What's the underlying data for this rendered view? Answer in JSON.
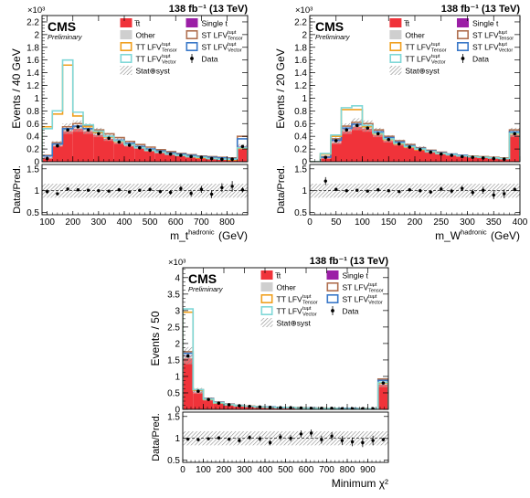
{
  "chart_data": [
    {
      "type": "bar",
      "panel": "top-left",
      "lumi_label": "138 fb⁻¹ (13 TeV)",
      "experiment": "CMS",
      "status": "Preliminary",
      "y_exponent": "×10³",
      "ylabel": "Events / 40 GeV",
      "ratio_ylabel": "Data/Pred.",
      "xlabel": "m_t^{hadronic} (GeV)",
      "xlim": [
        80,
        880
      ],
      "ylim": [
        0,
        2.3
      ],
      "yticks": [
        0,
        0.2,
        0.4,
        0.6,
        0.8,
        1,
        1.2,
        1.4,
        1.6,
        1.8,
        2,
        2.2
      ],
      "xticks": [
        100,
        200,
        300,
        400,
        500,
        600,
        700,
        800
      ],
      "ratio_ylim": [
        0.45,
        1.6
      ],
      "ratio_yticks": [
        0.5,
        1,
        1.5
      ],
      "legend_placement": "top-right",
      "bin_edges": [
        80,
        120,
        160,
        200,
        240,
        280,
        320,
        360,
        400,
        440,
        480,
        520,
        560,
        600,
        640,
        680,
        720,
        760,
        800,
        840,
        880
      ],
      "ttbar": [
        0.05,
        0.25,
        0.48,
        0.52,
        0.48,
        0.42,
        0.36,
        0.3,
        0.25,
        0.21,
        0.17,
        0.14,
        0.11,
        0.09,
        0.07,
        0.06,
        0.05,
        0.04,
        0.03,
        0.2
      ],
      "other": [
        0.01,
        0.02,
        0.03,
        0.03,
        0.03,
        0.03,
        0.02,
        0.02,
        0.02,
        0.02,
        0.01,
        0.01,
        0.01,
        0.01,
        0.01,
        0.01,
        0.01,
        0.01,
        0.01,
        0.03
      ],
      "singlet": [
        0.005,
        0.01,
        0.01,
        0.01,
        0.01,
        0.01,
        0.01,
        0.01,
        0.01,
        0.01,
        0.01,
        0.005,
        0.005,
        0.005,
        0.005,
        0.003,
        0.003,
        0.003,
        0.003,
        0.01
      ],
      "sig_tt_tensor": [
        0.55,
        0.75,
        1.52,
        0.72,
        0.55,
        0.46,
        0.39,
        0.32,
        0.27,
        0.22,
        0.18,
        0.15,
        0.12,
        0.1,
        0.08,
        0.06,
        0.05,
        0.04,
        0.03,
        0.21
      ],
      "sig_tt_vector": [
        0.52,
        0.8,
        1.6,
        0.78,
        0.58,
        0.48,
        0.4,
        0.33,
        0.27,
        0.22,
        0.18,
        0.15,
        0.12,
        0.1,
        0.08,
        0.07,
        0.05,
        0.04,
        0.04,
        0.22
      ],
      "sig_st_tensor": [
        0.1,
        0.3,
        0.55,
        0.6,
        0.56,
        0.5,
        0.44,
        0.38,
        0.32,
        0.27,
        0.23,
        0.19,
        0.16,
        0.13,
        0.11,
        0.09,
        0.08,
        0.07,
        0.06,
        0.4
      ],
      "sig_st_vector": [
        0.09,
        0.28,
        0.52,
        0.56,
        0.52,
        0.46,
        0.4,
        0.34,
        0.29,
        0.24,
        0.2,
        0.17,
        0.14,
        0.12,
        0.1,
        0.08,
        0.07,
        0.06,
        0.05,
        0.36
      ],
      "data": [
        0.05,
        0.25,
        0.5,
        0.55,
        0.5,
        0.44,
        0.37,
        0.31,
        0.26,
        0.22,
        0.18,
        0.15,
        0.12,
        0.1,
        0.08,
        0.07,
        0.05,
        0.04,
        0.04,
        0.24
      ],
      "unc_frac": 0.16,
      "ratio": [
        0.98,
        0.93,
        1.04,
        1.02,
        1.01,
        1.0,
        0.99,
        1.02,
        0.97,
        1.01,
        1.03,
        0.98,
        0.96,
        1.05,
        0.94,
        1.03,
        0.92,
        1.07,
        1.1,
        1.02
      ],
      "ratio_err": [
        0.05,
        0.03,
        0.02,
        0.02,
        0.02,
        0.02,
        0.02,
        0.03,
        0.03,
        0.03,
        0.04,
        0.04,
        0.05,
        0.06,
        0.07,
        0.08,
        0.09,
        0.1,
        0.12,
        0.06
      ]
    },
    {
      "type": "bar",
      "panel": "top-right",
      "lumi_label": "138 fb⁻¹ (13 TeV)",
      "experiment": "CMS",
      "status": "Preliminary",
      "y_exponent": "×10³",
      "ylabel": "Events / 20 GeV",
      "ratio_ylabel": "Data/Pred.",
      "xlabel": "m_W^{hadronic} (GeV)",
      "xlim": [
        0,
        400
      ],
      "ylim": [
        0,
        2.3
      ],
      "yticks": [
        0,
        0.2,
        0.4,
        0.6,
        0.8,
        1,
        1.2,
        1.4,
        1.6,
        1.8,
        2,
        2.2
      ],
      "xticks": [
        0,
        50,
        100,
        150,
        200,
        250,
        300,
        350,
        400
      ],
      "ratio_ylim": [
        0.45,
        1.6
      ],
      "ratio_yticks": [
        0.5,
        1,
        1.5
      ],
      "legend_placement": "top-right",
      "bin_edges": [
        0,
        20,
        40,
        60,
        80,
        100,
        120,
        140,
        160,
        180,
        200,
        220,
        240,
        260,
        280,
        300,
        320,
        340,
        360,
        380,
        400
      ],
      "ttbar": [
        0.0,
        0.05,
        0.3,
        0.48,
        0.55,
        0.52,
        0.42,
        0.33,
        0.27,
        0.22,
        0.18,
        0.15,
        0.12,
        0.1,
        0.08,
        0.07,
        0.06,
        0.05,
        0.04,
        0.42
      ],
      "other": [
        0.0,
        0.01,
        0.02,
        0.03,
        0.03,
        0.03,
        0.03,
        0.02,
        0.02,
        0.02,
        0.02,
        0.01,
        0.01,
        0.01,
        0.01,
        0.01,
        0.01,
        0.01,
        0.01,
        0.03
      ],
      "singlet": [
        0.0,
        0.005,
        0.01,
        0.01,
        0.01,
        0.01,
        0.01,
        0.01,
        0.01,
        0.01,
        0.01,
        0.005,
        0.005,
        0.005,
        0.005,
        0.003,
        0.003,
        0.003,
        0.003,
        0.01
      ],
      "sig_tt_tensor": [
        0.0,
        0.12,
        0.4,
        0.82,
        0.82,
        0.55,
        0.44,
        0.35,
        0.28,
        0.23,
        0.19,
        0.16,
        0.13,
        0.11,
        0.09,
        0.08,
        0.07,
        0.06,
        0.05,
        0.44
      ],
      "sig_tt_vector": [
        0.0,
        0.13,
        0.42,
        0.85,
        0.88,
        0.57,
        0.45,
        0.36,
        0.29,
        0.24,
        0.2,
        0.16,
        0.13,
        0.11,
        0.09,
        0.08,
        0.07,
        0.06,
        0.05,
        0.45
      ],
      "sig_st_tensor": [
        0.0,
        0.08,
        0.36,
        0.56,
        0.62,
        0.6,
        0.5,
        0.4,
        0.33,
        0.27,
        0.22,
        0.18,
        0.15,
        0.12,
        0.1,
        0.09,
        0.08,
        0.07,
        0.06,
        0.5
      ],
      "sig_st_vector": [
        0.0,
        0.07,
        0.34,
        0.53,
        0.59,
        0.57,
        0.47,
        0.38,
        0.31,
        0.25,
        0.21,
        0.17,
        0.14,
        0.12,
        0.1,
        0.08,
        0.07,
        0.06,
        0.05,
        0.47
      ],
      "data": [
        0.0,
        0.07,
        0.33,
        0.5,
        0.57,
        0.53,
        0.44,
        0.35,
        0.28,
        0.23,
        0.19,
        0.15,
        0.12,
        0.1,
        0.08,
        0.07,
        0.06,
        0.05,
        0.04,
        0.44
      ],
      "unc_frac": 0.16,
      "ratio": [
        null,
        1.22,
        1.03,
        1.0,
        1.01,
        0.99,
        1.02,
        1.0,
        0.98,
        1.02,
        1.0,
        0.97,
        1.04,
        0.99,
        1.05,
        0.96,
        1.01,
        0.9,
        0.93,
        1.03
      ],
      "ratio_err": [
        null,
        0.09,
        0.03,
        0.02,
        0.02,
        0.02,
        0.02,
        0.03,
        0.03,
        0.03,
        0.04,
        0.04,
        0.05,
        0.05,
        0.06,
        0.07,
        0.08,
        0.09,
        0.1,
        0.04
      ]
    },
    {
      "type": "bar",
      "panel": "bottom",
      "lumi_label": "138 fb⁻¹ (13 TeV)",
      "experiment": "CMS",
      "status": "Preliminary",
      "y_exponent": "×10³",
      "ylabel": "Events / 50",
      "ratio_ylabel": "Data/Pred.",
      "xlabel": "Minimum χ²",
      "xlim": [
        0,
        1000
      ],
      "ylim": [
        0,
        4.3
      ],
      "yticks": [
        0,
        0.5,
        1,
        1.5,
        2,
        2.5,
        3,
        3.5,
        4
      ],
      "xticks": [
        0,
        100,
        200,
        300,
        400,
        500,
        600,
        700,
        800,
        900
      ],
      "ratio_ylim": [
        0.45,
        1.6
      ],
      "ratio_yticks": [
        0.5,
        1,
        1.5
      ],
      "legend_placement": "top-right",
      "bin_edges": [
        0,
        50,
        100,
        150,
        200,
        250,
        300,
        350,
        400,
        450,
        500,
        550,
        600,
        650,
        700,
        750,
        800,
        850,
        900,
        950,
        1000
      ],
      "ttbar": [
        1.55,
        0.52,
        0.28,
        0.18,
        0.13,
        0.1,
        0.08,
        0.07,
        0.06,
        0.05,
        0.04,
        0.04,
        0.03,
        0.03,
        0.03,
        0.02,
        0.02,
        0.02,
        0.02,
        0.75
      ],
      "other": [
        0.06,
        0.03,
        0.02,
        0.01,
        0.01,
        0.01,
        0.01,
        0.01,
        0.005,
        0.005,
        0.005,
        0.005,
        0.004,
        0.004,
        0.004,
        0.003,
        0.003,
        0.003,
        0.003,
        0.04
      ],
      "singlet": [
        0.02,
        0.01,
        0.01,
        0.005,
        0.005,
        0.004,
        0.004,
        0.003,
        0.003,
        0.003,
        0.003,
        0.002,
        0.002,
        0.002,
        0.002,
        0.002,
        0.002,
        0.002,
        0.002,
        0.01
      ],
      "sig_tt_tensor": [
        2.95,
        0.58,
        0.3,
        0.19,
        0.14,
        0.11,
        0.09,
        0.07,
        0.06,
        0.05,
        0.05,
        0.04,
        0.03,
        0.03,
        0.03,
        0.02,
        0.02,
        0.02,
        0.02,
        0.8
      ],
      "sig_tt_vector": [
        3.05,
        0.6,
        0.31,
        0.2,
        0.14,
        0.11,
        0.09,
        0.07,
        0.06,
        0.05,
        0.05,
        0.04,
        0.03,
        0.03,
        0.03,
        0.02,
        0.02,
        0.02,
        0.02,
        0.82
      ],
      "sig_st_tensor": [
        1.75,
        0.6,
        0.33,
        0.22,
        0.16,
        0.12,
        0.1,
        0.08,
        0.07,
        0.06,
        0.05,
        0.05,
        0.04,
        0.04,
        0.03,
        0.03,
        0.03,
        0.03,
        0.02,
        0.92
      ],
      "sig_st_vector": [
        1.7,
        0.58,
        0.32,
        0.21,
        0.15,
        0.12,
        0.09,
        0.08,
        0.07,
        0.06,
        0.05,
        0.04,
        0.04,
        0.03,
        0.03,
        0.03,
        0.03,
        0.02,
        0.02,
        0.88
      ],
      "data": [
        1.62,
        0.55,
        0.3,
        0.19,
        0.14,
        0.11,
        0.09,
        0.07,
        0.06,
        0.05,
        0.05,
        0.04,
        0.03,
        0.03,
        0.03,
        0.02,
        0.02,
        0.02,
        0.02,
        0.8
      ],
      "unc_frac": 0.16,
      "ratio": [
        0.98,
        0.97,
        0.99,
        1.01,
        0.98,
        0.95,
        1.02,
        0.99,
        0.9,
        1.03,
        1.0,
        1.1,
        1.12,
        0.97,
        1.05,
        0.95,
        0.92,
        0.9,
        0.95,
        0.97
      ],
      "ratio_err": [
        0.02,
        0.03,
        0.03,
        0.04,
        0.04,
        0.05,
        0.05,
        0.06,
        0.06,
        0.07,
        0.07,
        0.08,
        0.08,
        0.09,
        0.09,
        0.1,
        0.1,
        0.1,
        0.11,
        0.04
      ]
    }
  ],
  "legend": {
    "ttbar": "t̅t",
    "singlet": "Single t",
    "other": "Other",
    "st_tensor": "ST LFV",
    "st_tensor_sup": "tuμt",
    "st_tensor_sub": "Tensor",
    "tt_tensor": "TT LFV",
    "tt_tensor_sup": "tuμt",
    "tt_tensor_sub": "Tensor",
    "st_vector": "ST LFV",
    "st_vector_sup": "tuμt",
    "st_vector_sub": "Vector",
    "tt_vector": "TT LFV",
    "tt_vector_sup": "tuμt",
    "tt_vector_sub": "Vector",
    "data": "Data",
    "stat_syst": "Stat⊕syst"
  },
  "colors": {
    "ttbar": "#f0333a",
    "other": "#cfcfcf",
    "singlet": "#9b1fa6",
    "st_tensor": "#b07050",
    "tt_tensor": "#f0a020",
    "st_vector": "#3a78c8",
    "tt_vector": "#7fd7d7",
    "data": "#000000",
    "band": "#9a9a9a"
  }
}
